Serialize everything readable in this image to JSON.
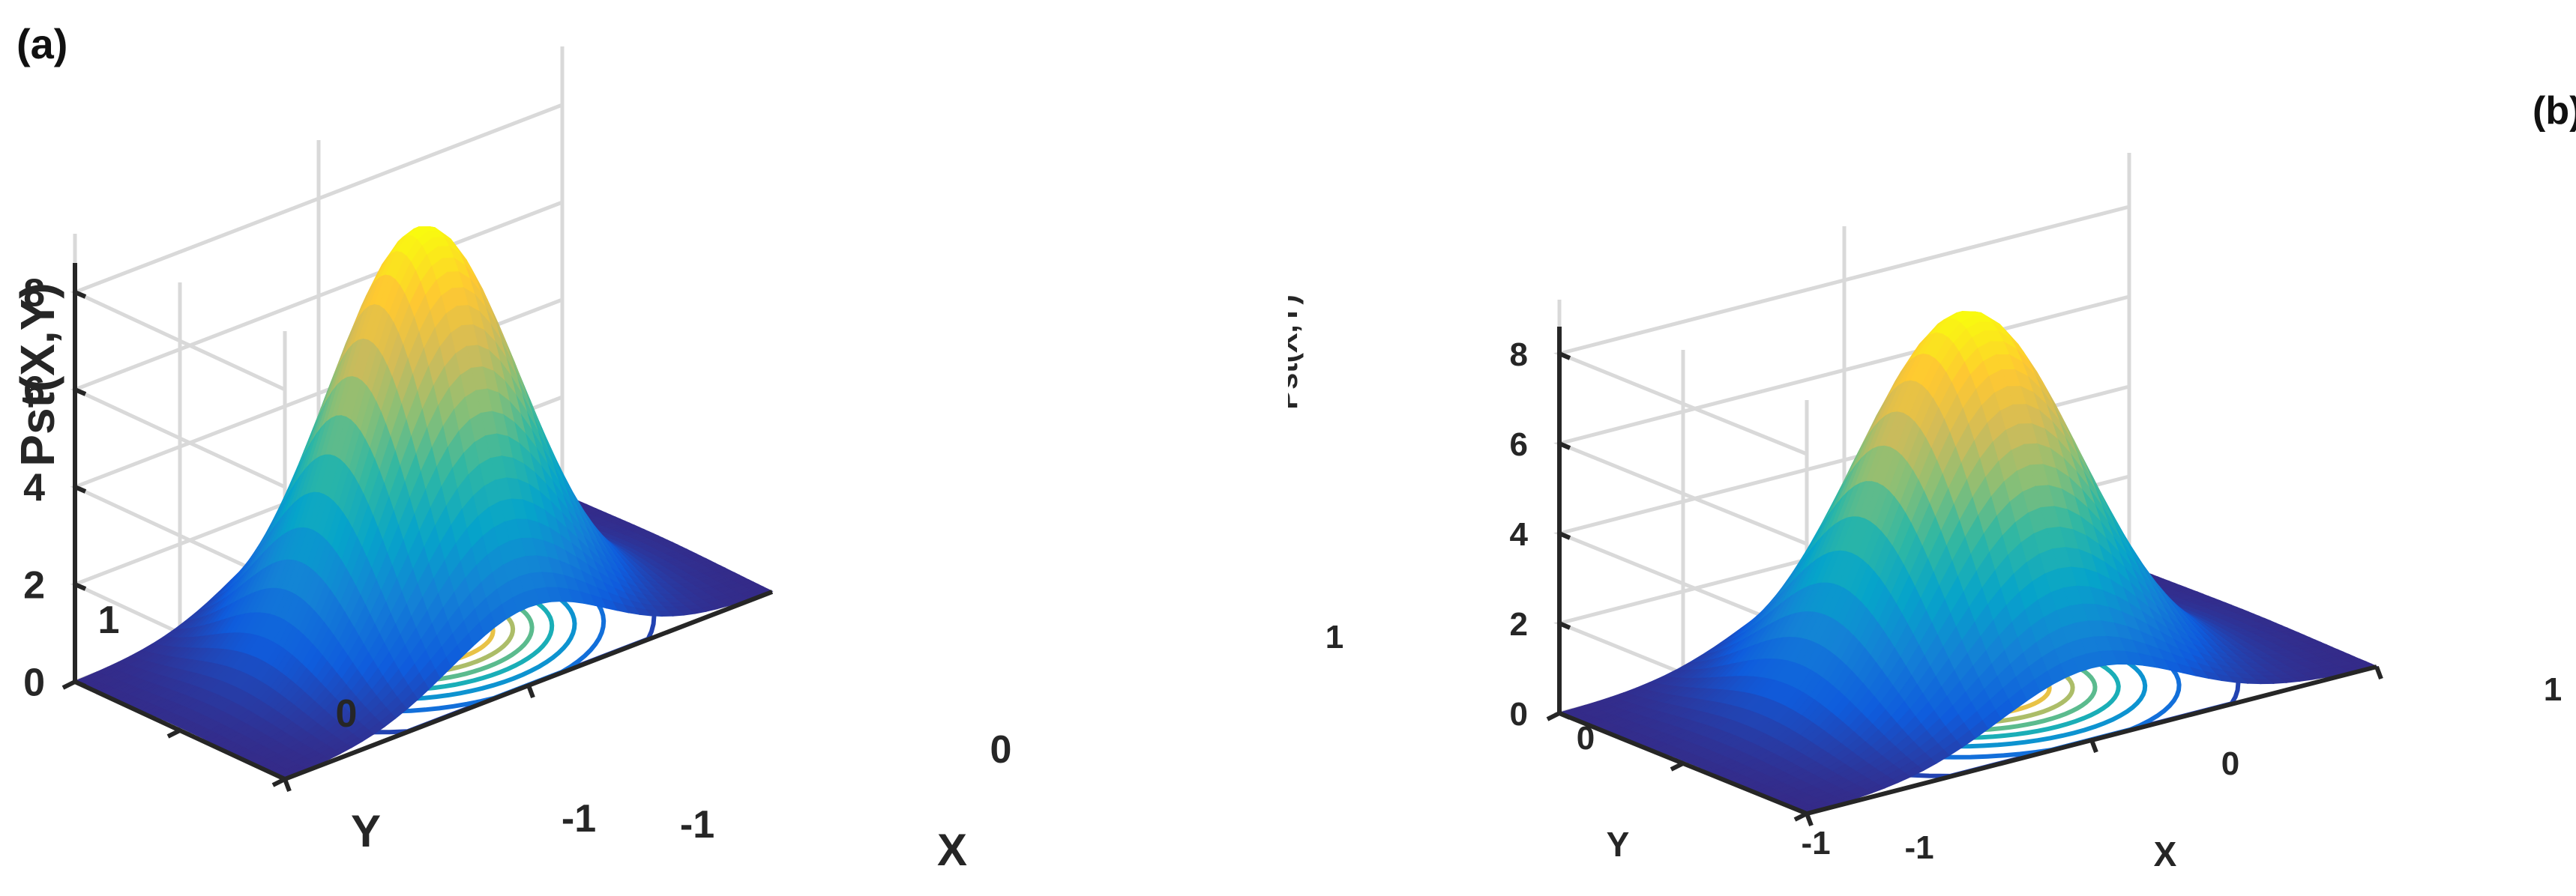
{
  "chart_data": [
    {
      "type": "surface",
      "panel_label": "(a)",
      "zlabel": "Pst(X,Y)",
      "xlabel": "X",
      "ylabel": "Y",
      "xlim": [
        -1,
        1
      ],
      "ylim": [
        -1,
        1
      ],
      "zlim": [
        0,
        8
      ],
      "x_ticks": [
        "-1",
        "0"
      ],
      "y_ticks": [
        "-1",
        "0",
        "1"
      ],
      "z_ticks": [
        "0",
        "2",
        "4",
        "6",
        "8"
      ],
      "peak_value": 8.4,
      "peak_location": {
        "x": 0.0,
        "y": 0.0
      },
      "contour_levels": [
        0.5,
        1.5,
        2.5,
        3.5,
        4.5,
        5.5,
        6.5,
        7.5
      ],
      "colormap": "parula",
      "grid": true
    },
    {
      "type": "surface",
      "panel_label": "(b)",
      "zlabel": "Pst(X,Y)",
      "xlabel": "X",
      "ylabel": "Y",
      "xlim": [
        -1,
        1
      ],
      "ylim": [
        -1,
        1
      ],
      "zlim": [
        0,
        8
      ],
      "x_ticks": [
        "-1",
        "0",
        "1"
      ],
      "y_ticks": [
        "-1",
        "0",
        "1"
      ],
      "z_ticks": [
        "0",
        "2",
        "4",
        "6",
        "8"
      ],
      "peak_value": 8.4,
      "peak_location": {
        "x": 0.0,
        "y": 0.0
      },
      "contour_levels": [
        0.5,
        1.5,
        2.5,
        3.5,
        4.5,
        5.5,
        6.5,
        7.5
      ],
      "colormap": "parula",
      "grid": true
    }
  ],
  "colors": {
    "parula": [
      "#352a87",
      "#0f5cdd",
      "#1481d6",
      "#06a4ca",
      "#2eb7a4",
      "#87bf77",
      "#d1bb59",
      "#fec832",
      "#f9fb0e"
    ],
    "grid": "#d9d9d9",
    "axis": "#262626"
  }
}
